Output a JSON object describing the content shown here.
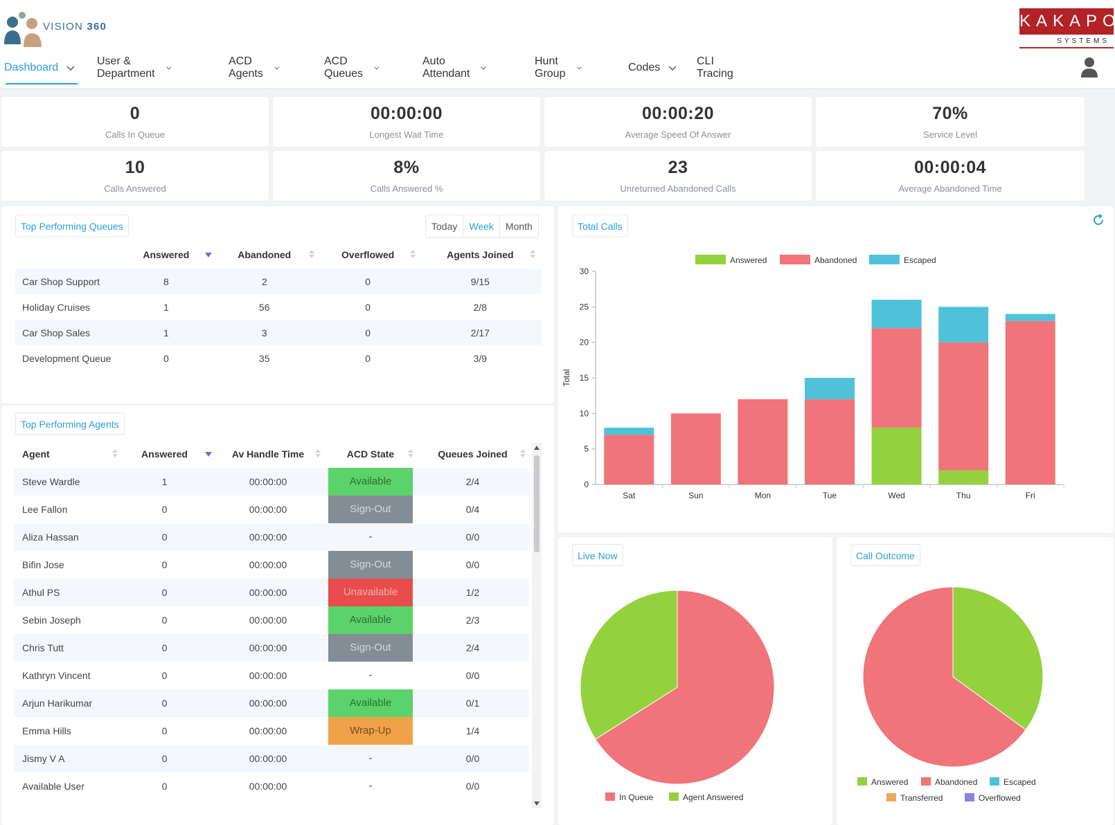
{
  "brand": {
    "product_prefix": "VISION",
    "product_suffix": "360",
    "company": "KAKAPO",
    "company_sub": "SYSTEMS"
  },
  "nav": {
    "items": [
      {
        "label": "Dashboard",
        "active": true,
        "dropdown": true
      },
      {
        "label": "User & Department",
        "active": false,
        "dropdown": true
      },
      {
        "label": "ACD Agents",
        "active": false,
        "dropdown": true
      },
      {
        "label": "ACD Queues",
        "active": false,
        "dropdown": true
      },
      {
        "label": "Auto Attendant",
        "active": false,
        "dropdown": true
      },
      {
        "label": "Hunt Group",
        "active": false,
        "dropdown": true
      },
      {
        "label": "Codes",
        "active": false,
        "dropdown": true
      },
      {
        "label": "CLI Tracing",
        "active": false,
        "dropdown": false
      }
    ]
  },
  "stats": [
    {
      "value": "0",
      "label": "Calls In Queue"
    },
    {
      "value": "00:00:00",
      "label": "Longest Wait Time"
    },
    {
      "value": "00:00:20",
      "label": "Average Speed Of Answer"
    },
    {
      "value": "70%",
      "label": "Service Level"
    },
    {
      "value": "10",
      "label": "Calls Answered"
    },
    {
      "value": "8%",
      "label": "Calls Answered %"
    },
    {
      "value": "23",
      "label": "Unreturned Abandoned Calls"
    },
    {
      "value": "00:00:04",
      "label": "Average Abandoned Time"
    }
  ],
  "queues": {
    "title": "Top Performing Queues",
    "periods": [
      "Today",
      "Week",
      "Month"
    ],
    "active_period": "Week",
    "columns": [
      "Answered",
      "Abandoned",
      "Overflowed",
      "Agents Joined"
    ],
    "rows": [
      {
        "name": "Car Shop Support",
        "answered": "8",
        "abandoned": "2",
        "overflowed": "0",
        "agents": "9/15"
      },
      {
        "name": "Holiday Cruises",
        "answered": "1",
        "abandoned": "56",
        "overflowed": "0",
        "agents": "2/8"
      },
      {
        "name": "Car Shop Sales",
        "answered": "1",
        "abandoned": "3",
        "overflowed": "0",
        "agents": "2/17"
      },
      {
        "name": "Development Queue",
        "answered": "0",
        "abandoned": "35",
        "overflowed": "0",
        "agents": "3/9"
      }
    ]
  },
  "agents": {
    "title": "Top Performing Agents",
    "columns": [
      "Agent",
      "Answered",
      "Av Handle Time",
      "ACD State",
      "Queues Joined"
    ],
    "rows": [
      {
        "name": "Steve Wardle",
        "answered": "1",
        "handle": "00:00:00",
        "state": "Available",
        "state_type": "available",
        "queues": "2/4"
      },
      {
        "name": "Lee Fallon",
        "answered": "0",
        "handle": "00:00:00",
        "state": "Sign-Out",
        "state_type": "signout",
        "queues": "0/4"
      },
      {
        "name": "Aliza Hassan",
        "answered": "0",
        "handle": "00:00:00",
        "state": "-",
        "state_type": "none",
        "queues": "0/0"
      },
      {
        "name": "Bifin Jose",
        "answered": "0",
        "handle": "00:00:00",
        "state": "Sign-Out",
        "state_type": "signout",
        "queues": "0/0"
      },
      {
        "name": "Athul PS",
        "answered": "0",
        "handle": "00:00:00",
        "state": "Unavailable",
        "state_type": "unavailable",
        "queues": "1/2"
      },
      {
        "name": "Sebin Joseph",
        "answered": "0",
        "handle": "00:00:00",
        "state": "Available",
        "state_type": "available",
        "queues": "2/3"
      },
      {
        "name": "Chris Tutt",
        "answered": "0",
        "handle": "00:00:00",
        "state": "Sign-Out",
        "state_type": "signout",
        "queues": "2/4"
      },
      {
        "name": "Kathryn Vincent",
        "answered": "0",
        "handle": "00:00:00",
        "state": "-",
        "state_type": "none",
        "queues": "0/0"
      },
      {
        "name": "Arjun Harikumar",
        "answered": "0",
        "handle": "00:00:00",
        "state": "Available",
        "state_type": "available",
        "queues": "0/1"
      },
      {
        "name": "Emma Hills",
        "answered": "0",
        "handle": "00:00:00",
        "state": "Wrap-Up",
        "state_type": "wrapup",
        "queues": "1/4"
      },
      {
        "name": "Jismy V A",
        "answered": "0",
        "handle": "00:00:00",
        "state": "-",
        "state_type": "none",
        "queues": "0/0"
      },
      {
        "name": "Available User",
        "answered": "0",
        "handle": "00:00:00",
        "state": "-",
        "state_type": "none",
        "queues": "0/0"
      }
    ]
  },
  "total_calls": {
    "title": "Total Calls"
  },
  "live_now": {
    "title": "Live Now"
  },
  "call_outcome": {
    "title": "Call Outcome"
  },
  "colors": {
    "answered": "#94d13e",
    "abandoned": "#f07479",
    "escaped": "#4fc2d9",
    "transferred": "#f0a95a",
    "overflowed": "#8e82e0",
    "accent": "#2a9fd6"
  },
  "chart_data": [
    {
      "type": "bar",
      "stacked": true,
      "title": "Total Calls",
      "ylabel": "Total",
      "xlabel": "",
      "ylim": [
        0,
        30
      ],
      "yticks": [
        0,
        5,
        10,
        15,
        20,
        25,
        30
      ],
      "categories": [
        "Sat",
        "Sun",
        "Mon",
        "Tue",
        "Wed",
        "Thu",
        "Fri"
      ],
      "legend_position": "top",
      "series": [
        {
          "name": "Answered",
          "color": "#94d13e",
          "values": [
            0,
            0,
            0,
            0,
            8,
            2,
            0
          ]
        },
        {
          "name": "Abandoned",
          "color": "#f07479",
          "values": [
            7,
            10,
            12,
            12,
            14,
            18,
            23
          ]
        },
        {
          "name": "Escaped",
          "color": "#4fc2d9",
          "values": [
            1,
            0,
            0,
            3,
            4,
            5,
            1
          ]
        }
      ]
    },
    {
      "type": "pie",
      "title": "Live Now",
      "legend_position": "bottom",
      "slices": [
        {
          "name": "In Queue",
          "color": "#f07479",
          "value": 66
        },
        {
          "name": "Agent Answered",
          "color": "#94d13e",
          "value": 34
        }
      ]
    },
    {
      "type": "pie",
      "title": "Call Outcome",
      "legend_position": "bottom",
      "slices": [
        {
          "name": "Answered",
          "color": "#94d13e",
          "value": 35
        },
        {
          "name": "Abandoned",
          "color": "#f07479",
          "value": 65
        },
        {
          "name": "Escaped",
          "color": "#4fc2d9",
          "value": 0
        },
        {
          "name": "Transferred",
          "color": "#f0a95a",
          "value": 0
        },
        {
          "name": "Overflowed",
          "color": "#8e82e0",
          "value": 0
        }
      ]
    }
  ]
}
